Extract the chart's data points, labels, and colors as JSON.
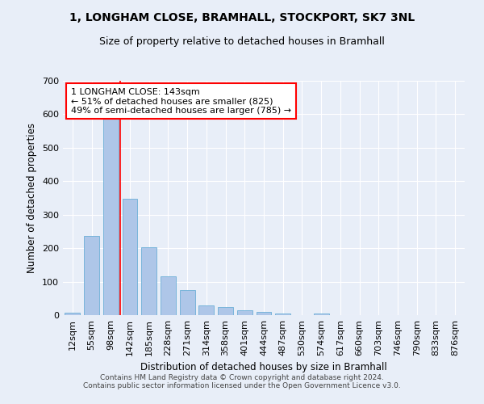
{
  "title_line1": "1, LONGHAM CLOSE, BRAMHALL, STOCKPORT, SK7 3NL",
  "title_line2": "Size of property relative to detached houses in Bramhall",
  "xlabel": "Distribution of detached houses by size in Bramhall",
  "ylabel": "Number of detached properties",
  "categories": [
    "12sqm",
    "55sqm",
    "98sqm",
    "142sqm",
    "185sqm",
    "228sqm",
    "271sqm",
    "314sqm",
    "358sqm",
    "401sqm",
    "444sqm",
    "487sqm",
    "530sqm",
    "574sqm",
    "617sqm",
    "660sqm",
    "703sqm",
    "746sqm",
    "790sqm",
    "833sqm",
    "876sqm"
  ],
  "values": [
    7,
    237,
    590,
    348,
    203,
    117,
    75,
    28,
    25,
    14,
    9,
    5,
    1,
    6,
    0,
    0,
    0,
    0,
    0,
    0,
    0
  ],
  "bar_color": "#aec6e8",
  "bar_edge_color": "#6baed6",
  "red_line_x": 2.5,
  "annotation_title": "1 LONGHAM CLOSE: 143sqm",
  "annotation_line2": "← 51% of detached houses are smaller (825)",
  "annotation_line3": "49% of semi-detached houses are larger (785) →",
  "annotation_box_color": "white",
  "annotation_box_edge_color": "red",
  "ylim": [
    0,
    700
  ],
  "yticks": [
    0,
    100,
    200,
    300,
    400,
    500,
    600,
    700
  ],
  "background_color": "#e8eef8",
  "grid_color": "white",
  "footer_line1": "Contains HM Land Registry data © Crown copyright and database right 2024.",
  "footer_line2": "Contains public sector information licensed under the Open Government Licence v3.0."
}
